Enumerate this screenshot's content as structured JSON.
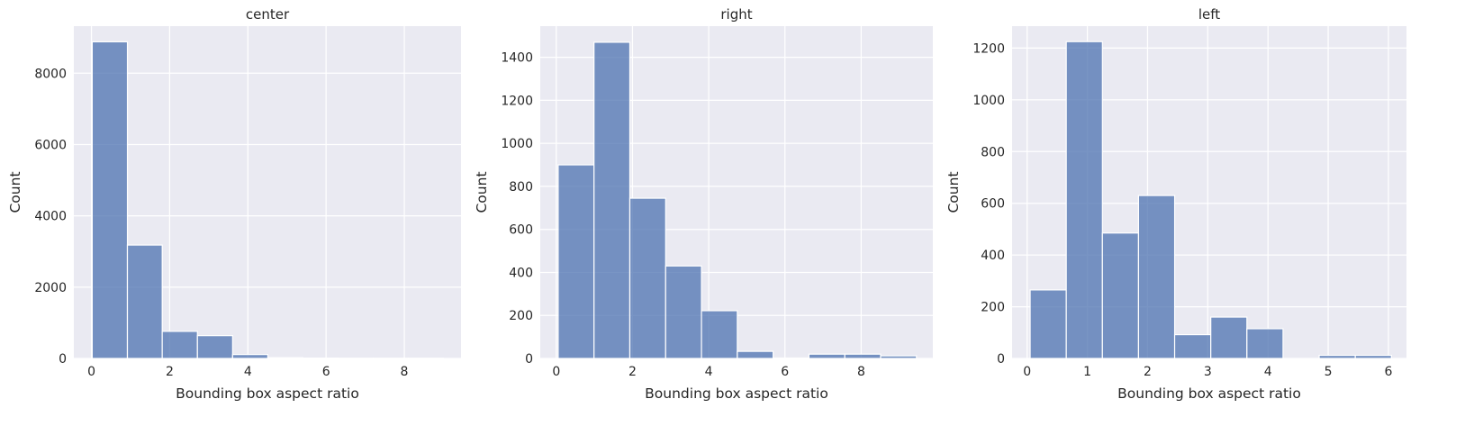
{
  "chart_data": [
    {
      "type": "bar",
      "title": "center",
      "xlabel": "Bounding box aspect ratio",
      "ylabel": "Count",
      "xlim": [
        -0.45,
        9.45
      ],
      "ylim": [
        0,
        9320
      ],
      "xticks": [
        0,
        2,
        4,
        6,
        8
      ],
      "yticks": [
        0,
        2000,
        4000,
        6000,
        8000
      ],
      "bin_edges": [
        0.02,
        0.92,
        1.81,
        2.71,
        3.61,
        4.51,
        5.4,
        6.3,
        7.2,
        8.1,
        9.0
      ],
      "values": [
        8880,
        3180,
        760,
        640,
        110,
        20,
        10,
        5,
        5,
        5
      ],
      "color": "#4c72b0",
      "grid": true
    },
    {
      "type": "bar",
      "title": "right",
      "xlabel": "Bounding box aspect ratio",
      "ylabel": "Count",
      "xlim": [
        -0.42,
        9.88
      ],
      "ylim": [
        0,
        1545
      ],
      "xticks": [
        0,
        2,
        4,
        6,
        8
      ],
      "yticks": [
        0,
        200,
        400,
        600,
        800,
        1000,
        1200,
        1400
      ],
      "bin_edges": [
        0.05,
        0.99,
        1.93,
        2.87,
        3.81,
        4.75,
        5.69,
        6.63,
        7.57,
        8.51,
        9.45
      ],
      "values": [
        900,
        1470,
        745,
        430,
        222,
        33,
        2,
        20,
        20,
        12
      ],
      "color": "#4c72b0",
      "grid": true
    },
    {
      "type": "bar",
      "title": "left",
      "xlabel": "Bounding box aspect ratio",
      "ylabel": "Count",
      "xlim": [
        -0.25,
        6.3
      ],
      "ylim": [
        0,
        1285
      ],
      "xticks": [
        0,
        1,
        2,
        3,
        4,
        5,
        6
      ],
      "yticks": [
        0,
        200,
        400,
        600,
        800,
        1000,
        1200
      ],
      "bin_edges": [
        0.05,
        0.65,
        1.25,
        1.85,
        2.45,
        3.05,
        3.65,
        4.25,
        4.85,
        5.45,
        6.05
      ],
      "values": [
        265,
        1225,
        485,
        630,
        92,
        160,
        115,
        0,
        12,
        12
      ],
      "color": "#4c72b0",
      "grid": true
    }
  ]
}
